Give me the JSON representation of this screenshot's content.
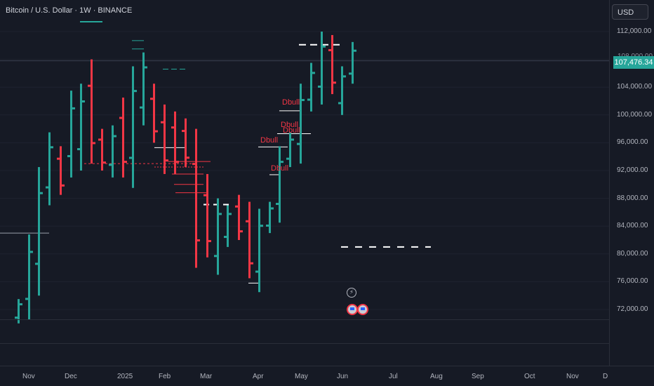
{
  "header": {
    "title": "Bitcoin / U.S. Dollar · 1W · BINANCE",
    "currency": "USD"
  },
  "last_price": "107,476.34",
  "last_price_hidden": "108,000.00",
  "price_axis": [
    "112,000.00",
    "108,000.00",
    "104,000.00",
    "100,000.00",
    "96,000.00",
    "92,000.00",
    "88,000.00",
    "84,000.00",
    "80,000.00",
    "76,000.00",
    "72,000.00"
  ],
  "time_axis": [
    "Nov",
    "Dec",
    "2025",
    "Feb",
    "Mar",
    "Apr",
    "May",
    "Jun",
    "Jul",
    "Aug",
    "Sep",
    "Oct",
    "Nov",
    "D"
  ],
  "annotations": [
    "Dbull",
    "Dbull",
    "Dbull",
    "Dbull",
    "Dbull"
  ],
  "colors": {
    "up": "#26a69a",
    "down": "#f23645",
    "background": "#161a25",
    "level": "#ffffff"
  },
  "chart_data": {
    "type": "ohlc",
    "timeframe": "1W",
    "ylim": [
      70000,
      114000
    ],
    "bars": [
      {
        "x": 26,
        "high": 73500,
        "low": 70000,
        "dir": "up"
      },
      {
        "x": 41,
        "high": 82800,
        "low": 70500,
        "dir": "up"
      },
      {
        "x": 55,
        "high": 92500,
        "low": 74000,
        "dir": "up"
      },
      {
        "x": 70,
        "high": 97500,
        "low": 87000,
        "dir": "up"
      },
      {
        "x": 86,
        "high": 95500,
        "low": 88500,
        "dir": "down"
      },
      {
        "x": 101,
        "high": 103500,
        "low": 91000,
        "dir": "up"
      },
      {
        "x": 115,
        "high": 104500,
        "low": 92000,
        "dir": "up"
      },
      {
        "x": 130,
        "high": 108000,
        "low": 93000,
        "dir": "down"
      },
      {
        "x": 145,
        "high": 98000,
        "low": 92000,
        "dir": "down"
      },
      {
        "x": 160,
        "high": 98500,
        "low": 91000,
        "dir": "up"
      },
      {
        "x": 175,
        "high": 102500,
        "low": 91000,
        "dir": "down"
      },
      {
        "x": 189,
        "high": 107000,
        "low": 89500,
        "dir": "up"
      },
      {
        "x": 204,
        "high": 109000,
        "low": 98500,
        "dir": "up"
      },
      {
        "x": 219,
        "high": 104500,
        "low": 96000,
        "dir": "down"
      },
      {
        "x": 234,
        "high": 101500,
        "low": 91500,
        "dir": "down"
      },
      {
        "x": 249,
        "high": 100500,
        "low": 91500,
        "dir": "down"
      },
      {
        "x": 264,
        "high": 99500,
        "low": 92500,
        "dir": "down"
      },
      {
        "x": 279,
        "high": 98000,
        "low": 78000,
        "dir": "down"
      },
      {
        "x": 295,
        "high": 91500,
        "low": 79500,
        "dir": "down"
      },
      {
        "x": 310,
        "high": 88000,
        "low": 77000,
        "dir": "up"
      },
      {
        "x": 324,
        "high": 87000,
        "low": 81000,
        "dir": "up"
      },
      {
        "x": 340,
        "high": 88500,
        "low": 82000,
        "dir": "down"
      },
      {
        "x": 355,
        "high": 87500,
        "low": 76500,
        "dir": "down"
      },
      {
        "x": 369,
        "high": 86500,
        "low": 74500,
        "dir": "up"
      },
      {
        "x": 384,
        "high": 87500,
        "low": 83000,
        "dir": "up"
      },
      {
        "x": 398,
        "high": 95500,
        "low": 84500,
        "dir": "up"
      },
      {
        "x": 413,
        "high": 97500,
        "low": 92500,
        "dir": "up"
      },
      {
        "x": 428,
        "high": 104500,
        "low": 93000,
        "dir": "up"
      },
      {
        "x": 443,
        "high": 107500,
        "low": 100500,
        "dir": "up"
      },
      {
        "x": 458,
        "high": 112000,
        "low": 101500,
        "dir": "up"
      },
      {
        "x": 473,
        "high": 111500,
        "low": 103000,
        "dir": "down"
      },
      {
        "x": 487,
        "high": 107000,
        "low": 100000,
        "dir": "up"
      },
      {
        "x": 502,
        "high": 110500,
        "low": 104500,
        "dir": "up"
      }
    ]
  }
}
